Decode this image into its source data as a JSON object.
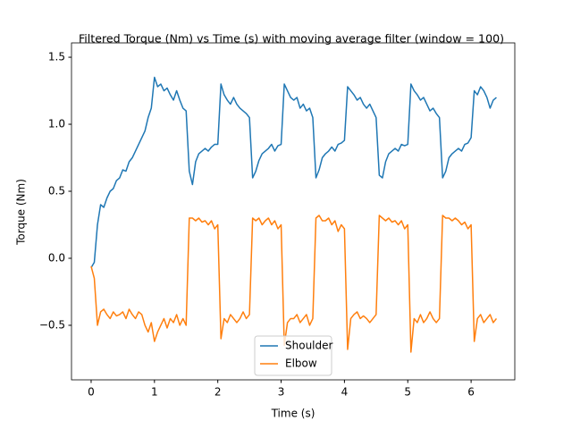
{
  "chart_data": {
    "type": "line",
    "title": "Filtered Torque (Nm) vs Time (s) with moving average filter (window = 100)",
    "xlabel": "Time (s)",
    "ylabel": "Torque (Nm)",
    "x": [
      0,
      0.05,
      0.1,
      0.15,
      0.2,
      0.25,
      0.3,
      0.35,
      0.4,
      0.45,
      0.5,
      0.55,
      0.6,
      0.65,
      0.7,
      0.75,
      0.8,
      0.85,
      0.9,
      0.95,
      1,
      1.05,
      1.1,
      1.15,
      1.2,
      1.25,
      1.3,
      1.35,
      1.4,
      1.45,
      1.5,
      1.55,
      1.6,
      1.65,
      1.7,
      1.75,
      1.8,
      1.85,
      1.9,
      1.95,
      2,
      2.05,
      2.1,
      2.15,
      2.2,
      2.25,
      2.3,
      2.35,
      2.4,
      2.45,
      2.5,
      2.55,
      2.6,
      2.65,
      2.7,
      2.75,
      2.8,
      2.85,
      2.9,
      2.95,
      3,
      3.05,
      3.1,
      3.15,
      3.2,
      3.25,
      3.3,
      3.35,
      3.4,
      3.45,
      3.5,
      3.55,
      3.6,
      3.65,
      3.7,
      3.75,
      3.8,
      3.85,
      3.9,
      3.95,
      4,
      4.05,
      4.1,
      4.15,
      4.2,
      4.25,
      4.3,
      4.35,
      4.4,
      4.45,
      4.5,
      4.55,
      4.6,
      4.65,
      4.7,
      4.75,
      4.8,
      4.85,
      4.9,
      4.95,
      5,
      5.05,
      5.1,
      5.15,
      5.2,
      5.25,
      5.3,
      5.35,
      5.4,
      5.45,
      5.5,
      5.55,
      5.6,
      5.65,
      5.7,
      5.75,
      5.8,
      5.85,
      5.9,
      5.95,
      6,
      6.05,
      6.1,
      6.15,
      6.2,
      6.25,
      6.3,
      6.35,
      6.4
    ],
    "series": [
      {
        "name": "Shoulder",
        "color": "#1f77b4",
        "values": [
          -0.07,
          -0.03,
          0.25,
          0.4,
          0.38,
          0.45,
          0.5,
          0.52,
          0.58,
          0.6,
          0.66,
          0.65,
          0.72,
          0.75,
          0.8,
          0.85,
          0.9,
          0.95,
          1.05,
          1.12,
          1.35,
          1.28,
          1.3,
          1.25,
          1.27,
          1.22,
          1.18,
          1.25,
          1.18,
          1.12,
          1.1,
          0.65,
          0.55,
          0.72,
          0.78,
          0.8,
          0.82,
          0.8,
          0.83,
          0.85,
          0.85,
          1.3,
          1.22,
          1.18,
          1.15,
          1.2,
          1.15,
          1.12,
          1.1,
          1.08,
          1.05,
          0.6,
          0.65,
          0.73,
          0.78,
          0.8,
          0.82,
          0.85,
          0.8,
          0.84,
          0.85,
          1.3,
          1.25,
          1.2,
          1.18,
          1.2,
          1.12,
          1.15,
          1.1,
          1.12,
          1.05,
          0.6,
          0.66,
          0.75,
          0.78,
          0.8,
          0.83,
          0.8,
          0.85,
          0.86,
          0.88,
          1.28,
          1.25,
          1.22,
          1.18,
          1.2,
          1.15,
          1.12,
          1.15,
          1.1,
          1.05,
          0.62,
          0.6,
          0.72,
          0.78,
          0.8,
          0.82,
          0.8,
          0.85,
          0.84,
          0.85,
          1.3,
          1.25,
          1.22,
          1.18,
          1.2,
          1.15,
          1.1,
          1.12,
          1.08,
          1.05,
          0.6,
          0.65,
          0.75,
          0.78,
          0.8,
          0.82,
          0.8,
          0.85,
          0.86,
          0.9,
          1.25,
          1.22,
          1.28,
          1.25,
          1.2,
          1.12,
          1.18,
          1.2
        ]
      },
      {
        "name": "Elbow",
        "color": "#ff7f0e",
        "values": [
          -0.06,
          -0.15,
          -0.5,
          -0.4,
          -0.38,
          -0.42,
          -0.45,
          -0.4,
          -0.43,
          -0.42,
          -0.4,
          -0.45,
          -0.38,
          -0.42,
          -0.45,
          -0.4,
          -0.42,
          -0.5,
          -0.55,
          -0.48,
          -0.62,
          -0.55,
          -0.5,
          -0.45,
          -0.52,
          -0.45,
          -0.48,
          -0.42,
          -0.5,
          -0.45,
          -0.5,
          0.3,
          0.3,
          0.28,
          0.3,
          0.27,
          0.28,
          0.25,
          0.28,
          0.22,
          0.25,
          -0.6,
          -0.45,
          -0.48,
          -0.42,
          -0.45,
          -0.48,
          -0.45,
          -0.4,
          -0.45,
          -0.42,
          0.3,
          0.28,
          0.3,
          0.25,
          0.28,
          0.3,
          0.25,
          0.28,
          0.22,
          0.25,
          -0.65,
          -0.48,
          -0.45,
          -0.45,
          -0.42,
          -0.48,
          -0.45,
          -0.42,
          -0.5,
          -0.45,
          0.3,
          0.32,
          0.28,
          0.28,
          0.3,
          0.25,
          0.28,
          0.2,
          0.25,
          0.22,
          -0.68,
          -0.45,
          -0.42,
          -0.4,
          -0.45,
          -0.43,
          -0.45,
          -0.48,
          -0.45,
          -0.42,
          0.32,
          0.3,
          0.28,
          0.3,
          0.27,
          0.28,
          0.25,
          0.28,
          0.22,
          0.25,
          -0.7,
          -0.45,
          -0.48,
          -0.42,
          -0.48,
          -0.45,
          -0.4,
          -0.45,
          -0.48,
          -0.45,
          0.32,
          0.3,
          0.3,
          0.28,
          0.3,
          0.28,
          0.25,
          0.27,
          0.22,
          0.25,
          -0.62,
          -0.45,
          -0.42,
          -0.48,
          -0.45,
          -0.42,
          -0.48,
          -0.45
        ]
      }
    ],
    "xlim": [
      -0.31,
      6.69
    ],
    "xticks": [
      0,
      1,
      2,
      3,
      4,
      5,
      6
    ],
    "ylim": [
      -0.907,
      1.607
    ],
    "yticks": [
      {
        "value": -0.5,
        "label": "−0.5"
      },
      {
        "value": 0,
        "label": "0.0"
      },
      0.5,
      {
        "value": 1,
        "label": "1.0"
      },
      1.5
    ],
    "grid": false,
    "legend": "lower center"
  }
}
